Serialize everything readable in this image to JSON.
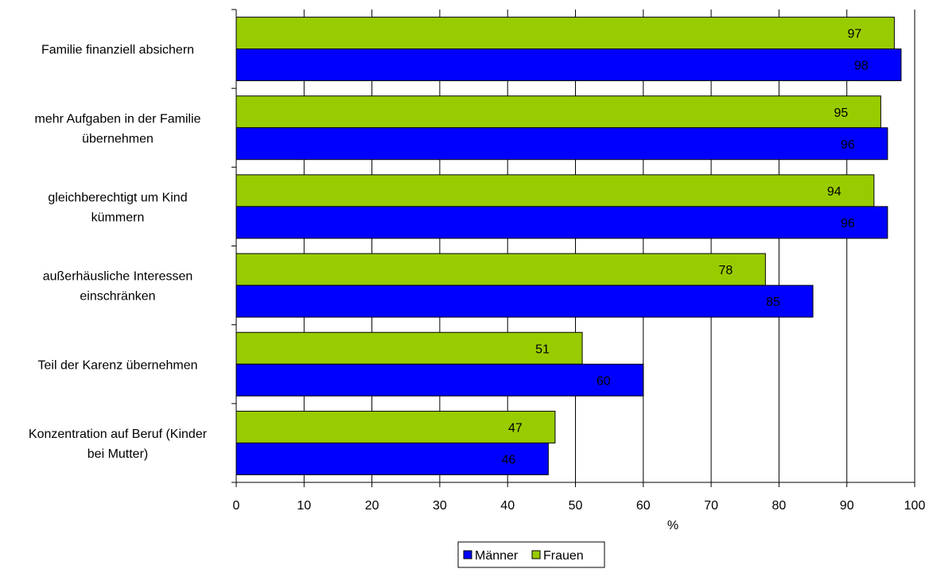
{
  "chart_data": {
    "type": "bar",
    "orientation": "horizontal",
    "title": "",
    "xlabel": "%",
    "ylabel": "",
    "xlim": [
      0,
      100
    ],
    "x_ticks": [
      0,
      10,
      20,
      30,
      40,
      50,
      60,
      70,
      80,
      90,
      100
    ],
    "grid": "vertical",
    "legend_position": "bottom",
    "categories": [
      [
        "Familie finanziell absichern"
      ],
      [
        "mehr Aufgaben in der Familie",
        "übernehmen"
      ],
      [
        "gleichberechtigt um Kind",
        "kümmern"
      ],
      [
        "außerhäusliche Interessen",
        "einschränken"
      ],
      [
        "Teil der Karenz übernehmen"
      ],
      [
        "Konzentration auf Beruf (Kinder",
        "bei Mutter)"
      ]
    ],
    "series": [
      {
        "name": "Frauen",
        "color": "#99cc00",
        "values": [
          97,
          95,
          94,
          78,
          51,
          47
        ]
      },
      {
        "name": "Männer",
        "color": "#0000ff",
        "values": [
          98,
          96,
          96,
          85,
          60,
          46
        ]
      }
    ],
    "legend_order": [
      "Männer",
      "Frauen"
    ]
  }
}
